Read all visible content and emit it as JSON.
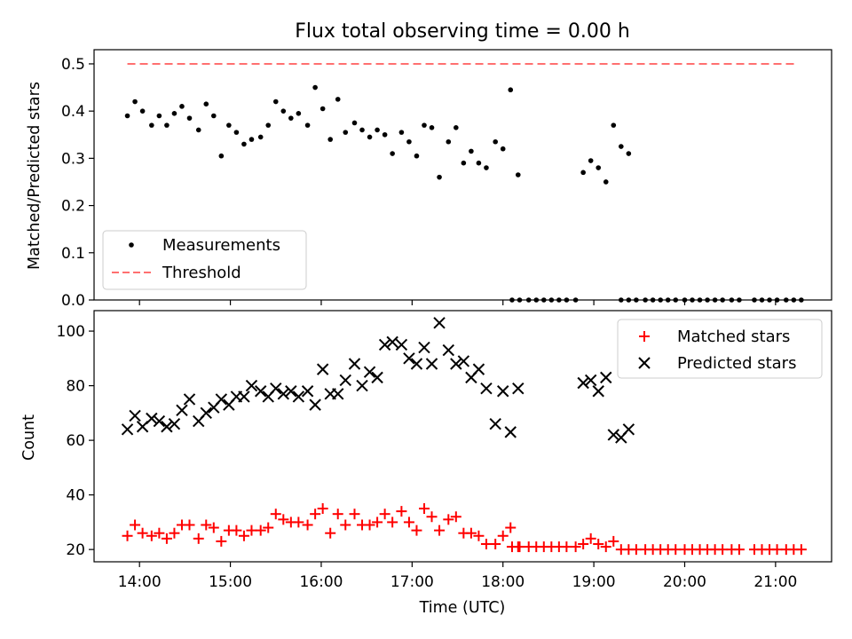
{
  "chart_data": [
    {
      "type": "scatter",
      "title": "Flux total observing time = 0.00 h",
      "xlabel": "",
      "ylabel": "Matched/Predicted stars",
      "xlim": [
        "13:30",
        "21:37"
      ],
      "ylim": [
        0,
        0.53
      ],
      "yticks": [
        "0.0",
        "0.1",
        "0.2",
        "0.3",
        "0.4",
        "0.5"
      ],
      "threshold": {
        "value": 0.5,
        "x": [
          "13:52",
          "21:15"
        ]
      },
      "legend": {
        "position": "bottom-left",
        "entries": [
          "Measurements",
          "Threshold"
        ]
      },
      "series": [
        {
          "name": "Measurements",
          "points": [
            [
              "13:52",
              0.39
            ],
            [
              "13:57",
              0.42
            ],
            [
              "14:02",
              0.4
            ],
            [
              "14:08",
              0.37
            ],
            [
              "14:13",
              0.39
            ],
            [
              "14:18",
              0.37
            ],
            [
              "14:23",
              0.395
            ],
            [
              "14:28",
              0.41
            ],
            [
              "14:33",
              0.385
            ],
            [
              "14:39",
              0.36
            ],
            [
              "14:44",
              0.415
            ],
            [
              "14:49",
              0.39
            ],
            [
              "14:54",
              0.305
            ],
            [
              "14:59",
              0.37
            ],
            [
              "15:04",
              0.355
            ],
            [
              "15:09",
              0.33
            ],
            [
              "15:14",
              0.34
            ],
            [
              "15:20",
              0.345
            ],
            [
              "15:25",
              0.37
            ],
            [
              "15:30",
              0.42
            ],
            [
              "15:35",
              0.4
            ],
            [
              "15:40",
              0.385
            ],
            [
              "15:45",
              0.395
            ],
            [
              "15:51",
              0.37
            ],
            [
              "15:56",
              0.45
            ],
            [
              "16:01",
              0.405
            ],
            [
              "16:06",
              0.34
            ],
            [
              "16:11",
              0.425
            ],
            [
              "16:16",
              0.355
            ],
            [
              "16:22",
              0.375
            ],
            [
              "16:27",
              0.36
            ],
            [
              "16:32",
              0.345
            ],
            [
              "16:37",
              0.36
            ],
            [
              "16:42",
              0.35
            ],
            [
              "16:47",
              0.31
            ],
            [
              "16:53",
              0.355
            ],
            [
              "16:58",
              0.335
            ],
            [
              "17:03",
              0.305
            ],
            [
              "17:08",
              0.37
            ],
            [
              "17:13",
              0.365
            ],
            [
              "17:18",
              0.26
            ],
            [
              "17:24",
              0.335
            ],
            [
              "17:29",
              0.365
            ],
            [
              "17:34",
              0.29
            ],
            [
              "17:39",
              0.315
            ],
            [
              "17:44",
              0.29
            ],
            [
              "17:49",
              0.28
            ],
            [
              "17:55",
              0.335
            ],
            [
              "18:00",
              0.32
            ],
            [
              "18:05",
              0.445
            ],
            [
              "18:10",
              0.265
            ],
            [
              "18:06",
              0.0
            ],
            [
              "18:11",
              0.0
            ],
            [
              "18:17",
              0.0
            ],
            [
              "18:22",
              0.0
            ],
            [
              "18:27",
              0.0
            ],
            [
              "18:32",
              0.0
            ],
            [
              "18:37",
              0.0
            ],
            [
              "18:42",
              0.0
            ],
            [
              "18:48",
              0.0
            ],
            [
              "18:53",
              0.27
            ],
            [
              "18:58",
              0.295
            ],
            [
              "19:03",
              0.28
            ],
            [
              "19:08",
              0.25
            ],
            [
              "19:13",
              0.37
            ],
            [
              "19:18",
              0.325
            ],
            [
              "19:23",
              0.31
            ],
            [
              "19:18",
              0.0
            ],
            [
              "19:23",
              0.0
            ],
            [
              "19:28",
              0.0
            ],
            [
              "19:34",
              0.0
            ],
            [
              "19:39",
              0.0
            ],
            [
              "19:44",
              0.0
            ],
            [
              "19:49",
              0.0
            ],
            [
              "19:54",
              0.0
            ],
            [
              "20:00",
              0.0
            ],
            [
              "20:05",
              0.0
            ],
            [
              "20:10",
              0.0
            ],
            [
              "20:15",
              0.0
            ],
            [
              "20:20",
              0.0
            ],
            [
              "20:25",
              0.0
            ],
            [
              "20:31",
              0.0
            ],
            [
              "20:36",
              0.0
            ],
            [
              "20:46",
              0.0
            ],
            [
              "20:51",
              0.0
            ],
            [
              "20:56",
              0.0
            ],
            [
              "21:01",
              0.0
            ],
            [
              "21:07",
              0.0
            ],
            [
              "21:12",
              0.0
            ],
            [
              "21:17",
              0.0
            ]
          ],
          "color": "#000000"
        }
      ]
    },
    {
      "type": "scatter",
      "title": "",
      "xlabel": "Time (UTC)",
      "ylabel": "Count",
      "xlim": [
        "13:30",
        "21:37"
      ],
      "ylim": [
        15.5,
        107.5
      ],
      "xticks": [
        "14:00",
        "15:00",
        "16:00",
        "17:00",
        "18:00",
        "19:00",
        "20:00",
        "21:00"
      ],
      "yticks": [
        "20",
        "40",
        "60",
        "80",
        "100"
      ],
      "legend": {
        "position": "top-right",
        "entries": [
          "Matched stars",
          "Predicted stars"
        ]
      },
      "series": [
        {
          "name": "Matched stars",
          "marker": "plus",
          "color": "#ff0000",
          "points": [
            [
              "13:52",
              25
            ],
            [
              "13:57",
              29
            ],
            [
              "14:02",
              26
            ],
            [
              "14:08",
              25
            ],
            [
              "14:13",
              26
            ],
            [
              "14:18",
              24
            ],
            [
              "14:23",
              26
            ],
            [
              "14:28",
              29
            ],
            [
              "14:33",
              29
            ],
            [
              "14:39",
              24
            ],
            [
              "14:44",
              29
            ],
            [
              "14:49",
              28
            ],
            [
              "14:54",
              23
            ],
            [
              "14:59",
              27
            ],
            [
              "15:04",
              27
            ],
            [
              "15:09",
              25
            ],
            [
              "15:14",
              27
            ],
            [
              "15:20",
              27
            ],
            [
              "15:25",
              28
            ],
            [
              "15:30",
              33
            ],
            [
              "15:35",
              31
            ],
            [
              "15:40",
              30
            ],
            [
              "15:45",
              30
            ],
            [
              "15:51",
              29
            ],
            [
              "15:56",
              33
            ],
            [
              "16:01",
              35
            ],
            [
              "16:06",
              26
            ],
            [
              "16:11",
              33
            ],
            [
              "16:16",
              29
            ],
            [
              "16:22",
              33
            ],
            [
              "16:27",
              29
            ],
            [
              "16:32",
              29
            ],
            [
              "16:37",
              30
            ],
            [
              "16:42",
              33
            ],
            [
              "16:47",
              30
            ],
            [
              "16:53",
              34
            ],
            [
              "16:58",
              30
            ],
            [
              "17:03",
              27
            ],
            [
              "17:08",
              35
            ],
            [
              "17:13",
              32
            ],
            [
              "17:18",
              27
            ],
            [
              "17:24",
              31
            ],
            [
              "17:29",
              32
            ],
            [
              "17:34",
              26
            ],
            [
              "17:39",
              26
            ],
            [
              "17:44",
              25
            ],
            [
              "17:49",
              22
            ],
            [
              "17:55",
              22
            ],
            [
              "18:00",
              25
            ],
            [
              "18:05",
              28
            ],
            [
              "18:10",
              21
            ],
            [
              "18:06",
              21
            ],
            [
              "18:11",
              21
            ],
            [
              "18:17",
              21
            ],
            [
              "18:22",
              21
            ],
            [
              "18:27",
              21
            ],
            [
              "18:32",
              21
            ],
            [
              "18:37",
              21
            ],
            [
              "18:42",
              21
            ],
            [
              "18:48",
              21
            ],
            [
              "18:53",
              22
            ],
            [
              "18:58",
              24
            ],
            [
              "19:03",
              22
            ],
            [
              "19:08",
              21
            ],
            [
              "19:13",
              23
            ],
            [
              "19:18",
              20
            ],
            [
              "19:23",
              20
            ],
            [
              "19:28",
              20
            ],
            [
              "19:34",
              20
            ],
            [
              "19:39",
              20
            ],
            [
              "19:44",
              20
            ],
            [
              "19:49",
              20
            ],
            [
              "19:54",
              20
            ],
            [
              "20:00",
              20
            ],
            [
              "20:05",
              20
            ],
            [
              "20:10",
              20
            ],
            [
              "20:15",
              20
            ],
            [
              "20:20",
              20
            ],
            [
              "20:25",
              20
            ],
            [
              "20:31",
              20
            ],
            [
              "20:36",
              20
            ],
            [
              "20:46",
              20
            ],
            [
              "20:51",
              20
            ],
            [
              "20:56",
              20
            ],
            [
              "21:01",
              20
            ],
            [
              "21:07",
              20
            ],
            [
              "21:12",
              20
            ],
            [
              "21:17",
              20
            ]
          ]
        },
        {
          "name": "Predicted stars",
          "marker": "x",
          "color": "#000000",
          "points": [
            [
              "13:52",
              64
            ],
            [
              "13:57",
              69
            ],
            [
              "14:02",
              65
            ],
            [
              "14:08",
              68
            ],
            [
              "14:13",
              67
            ],
            [
              "14:18",
              65
            ],
            [
              "14:23",
              66
            ],
            [
              "14:28",
              71
            ],
            [
              "14:33",
              75
            ],
            [
              "14:39",
              67
            ],
            [
              "14:44",
              70
            ],
            [
              "14:49",
              72
            ],
            [
              "14:54",
              75
            ],
            [
              "14:59",
              73
            ],
            [
              "15:04",
              76
            ],
            [
              "15:09",
              76
            ],
            [
              "15:14",
              80
            ],
            [
              "15:20",
              78
            ],
            [
              "15:25",
              76
            ],
            [
              "15:30",
              79
            ],
            [
              "15:35",
              77
            ],
            [
              "15:40",
              78
            ],
            [
              "15:45",
              76
            ],
            [
              "15:51",
              78
            ],
            [
              "15:56",
              73
            ],
            [
              "16:01",
              86
            ],
            [
              "16:06",
              77
            ],
            [
              "16:11",
              77
            ],
            [
              "16:16",
              82
            ],
            [
              "16:22",
              88
            ],
            [
              "16:27",
              80
            ],
            [
              "16:32",
              85
            ],
            [
              "16:37",
              83
            ],
            [
              "16:42",
              95
            ],
            [
              "16:47",
              96
            ],
            [
              "16:53",
              95
            ],
            [
              "16:58",
              90
            ],
            [
              "17:03",
              88
            ],
            [
              "17:08",
              94
            ],
            [
              "17:13",
              88
            ],
            [
              "17:18",
              103
            ],
            [
              "17:24",
              93
            ],
            [
              "17:29",
              88
            ],
            [
              "17:34",
              89
            ],
            [
              "17:39",
              83
            ],
            [
              "17:44",
              86
            ],
            [
              "17:49",
              79
            ],
            [
              "17:55",
              66
            ],
            [
              "18:00",
              78
            ],
            [
              "18:05",
              63
            ],
            [
              "18:10",
              79
            ],
            [
              "18:53",
              81
            ],
            [
              "18:58",
              82
            ],
            [
              "19:03",
              78
            ],
            [
              "19:08",
              83
            ],
            [
              "19:13",
              62
            ],
            [
              "19:18",
              61
            ],
            [
              "19:23",
              64
            ]
          ]
        }
      ]
    }
  ]
}
